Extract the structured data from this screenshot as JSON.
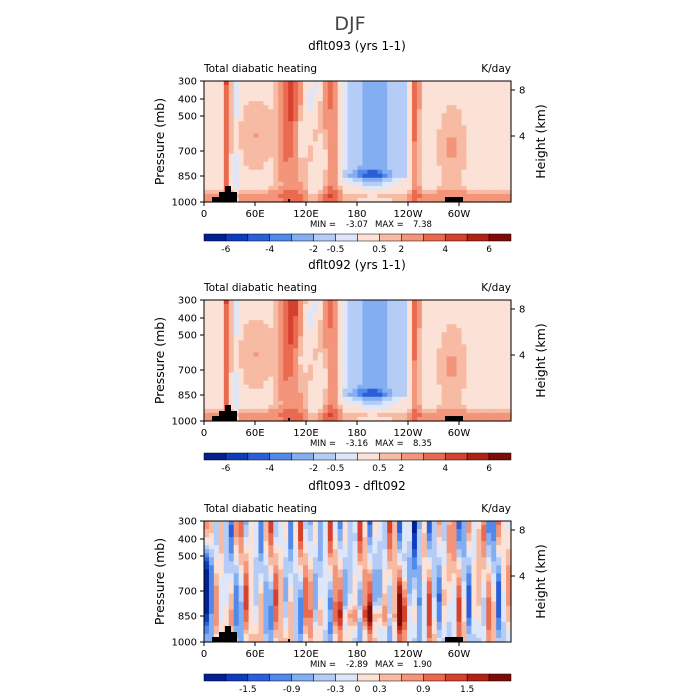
{
  "page_title": "DJF",
  "colorbar_colors_1": [
    "#02208f",
    "#0f3bbd",
    "#2a5fd8",
    "#5189eb",
    "#84aef2",
    "#b5ccf6",
    "#dde7f9",
    "#fbe1d6",
    "#f7bba4",
    "#f3957a",
    "#ea6a50",
    "#d5412c",
    "#b12215",
    "#7f0a0a"
  ],
  "colorbar_colors_3": [
    "#02208f",
    "#0f3bbd",
    "#2a5fd8",
    "#5189eb",
    "#84aef2",
    "#b5ccf6",
    "#dde7f9",
    "#fbe1d6",
    "#f7bba4",
    "#f3957a",
    "#ea6a50",
    "#d5412c",
    "#b12215",
    "#7f0a0a"
  ],
  "chart_data": [
    {
      "type": "heatmap",
      "title": "dflt093 (yrs 1-1)",
      "left_string": "Total diabatic heating",
      "right_string": "K/day",
      "xlabel": "",
      "ylabel": "Pressure (mb)",
      "ylabel_right": "Height (km)",
      "x_ticks": [
        "0",
        "60E",
        "120E",
        "180",
        "120W",
        "60W"
      ],
      "y_ticks": [
        "300",
        "400",
        "500",
        "700",
        "850",
        "1000"
      ],
      "right_ticks": [
        "8",
        "4"
      ],
      "stats": {
        "min_label": "MIN =",
        "min": "-3.07",
        "max_label": "MAX =",
        "max": "7.38"
      },
      "colorbar_labels": [
        "-6",
        "-4",
        "-2",
        "-0.5",
        "0.5",
        "2",
        "4",
        "6"
      ],
      "diff": false
    },
    {
      "type": "heatmap",
      "title": "dflt092 (yrs 1-1)",
      "left_string": "Total diabatic heating",
      "right_string": "K/day",
      "xlabel": "",
      "ylabel": "Pressure (mb)",
      "ylabel_right": "Height (km)",
      "x_ticks": [
        "0",
        "60E",
        "120E",
        "180",
        "120W",
        "60W"
      ],
      "y_ticks": [
        "300",
        "400",
        "500",
        "700",
        "850",
        "1000"
      ],
      "right_ticks": [
        "8",
        "4"
      ],
      "stats": {
        "min_label": "MIN =",
        "min": "-3.16",
        "max_label": "MAX =",
        "max": "8.35"
      },
      "colorbar_labels": [
        "-6",
        "-4",
        "-2",
        "-0.5",
        "0.5",
        "2",
        "4",
        "6"
      ],
      "diff": false
    },
    {
      "type": "heatmap",
      "title": "dflt093 - dflt092",
      "left_string": "Total diabatic heating",
      "right_string": "K/day",
      "xlabel": "",
      "ylabel": "Pressure (mb)",
      "ylabel_right": "Height (km)",
      "x_ticks": [
        "0",
        "60E",
        "120E",
        "180",
        "120W",
        "60W"
      ],
      "y_ticks": [
        "300",
        "400",
        "500",
        "700",
        "850",
        "1000"
      ],
      "right_ticks": [
        "8",
        "4"
      ],
      "stats": {
        "min_label": "MIN =",
        "min": "-2.89",
        "max_label": "MAX =",
        "max": "1.90"
      },
      "colorbar_labels": [
        "-1.5",
        "-0.9",
        "-0.3",
        "0",
        "0.3",
        "0.9",
        "1.5"
      ],
      "diff": true
    }
  ]
}
